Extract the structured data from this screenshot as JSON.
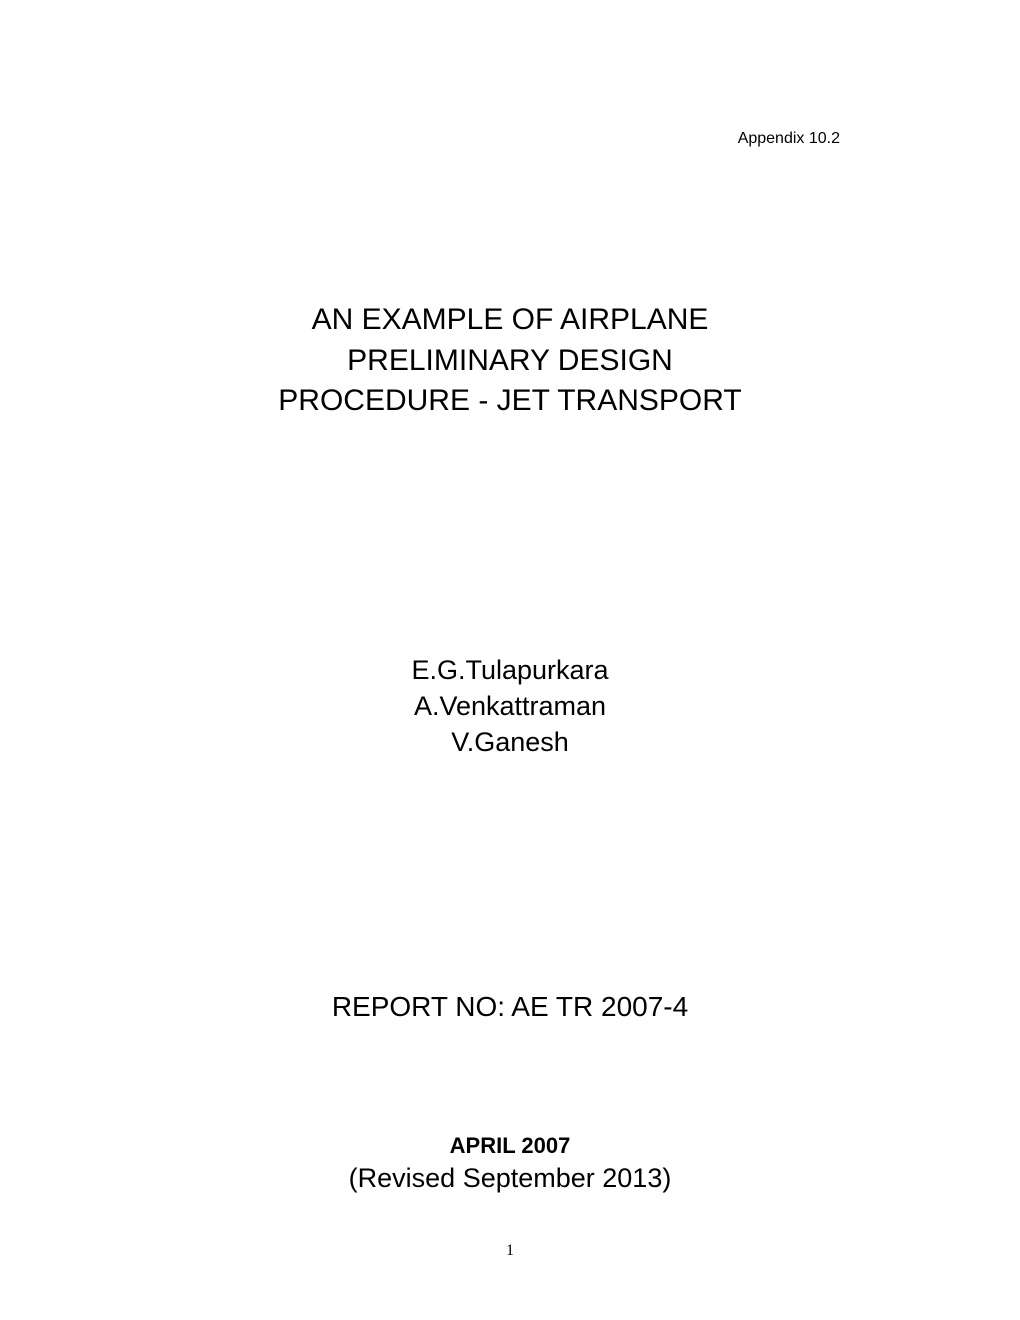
{
  "appendix": "Appendix 10.2",
  "title": {
    "line1": "AN EXAMPLE OF AIRPLANE",
    "line2": "PRELIMINARY DESIGN",
    "line3": "PROCEDURE - JET TRANSPORT"
  },
  "authors": {
    "author1": "E.G.Tulapurkara",
    "author2": "A.Venkattraman",
    "author3": "V.Ganesh"
  },
  "report_no": "REPORT NO: AE TR 2007-4",
  "date": "APRIL 2007",
  "revised": "(Revised September 2013)",
  "page_number": "1",
  "styling": {
    "background_color": "#ffffff",
    "text_color": "#000000",
    "title_fontsize": 30,
    "author_fontsize": 27,
    "report_fontsize": 28,
    "date_fontsize": 22,
    "revised_fontsize": 27,
    "appendix_fontsize": 16,
    "page_number_fontsize": 16,
    "font_family": "Arial"
  }
}
